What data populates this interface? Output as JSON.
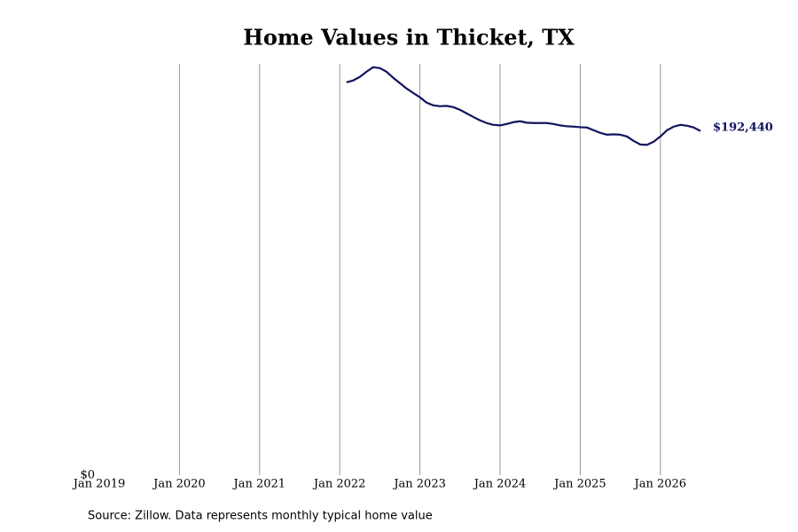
{
  "chart_data": {
    "type": "line",
    "title": "Home Values in Thicket, TX",
    "source": "Source: Zillow. Data represents monthly typical home value",
    "x": [
      "2022-02",
      "2022-03",
      "2022-04",
      "2022-05",
      "2022-06",
      "2022-07",
      "2022-08",
      "2022-09",
      "2022-10",
      "2022-11",
      "2022-12",
      "2023-01",
      "2023-02",
      "2023-03",
      "2023-04",
      "2023-05",
      "2023-06",
      "2023-07",
      "2023-08",
      "2023-09",
      "2023-10",
      "2023-11",
      "2023-12",
      "2024-01",
      "2024-02",
      "2024-03",
      "2024-04",
      "2024-05",
      "2024-06",
      "2024-07",
      "2024-08",
      "2024-09",
      "2024-10",
      "2024-11",
      "2024-12",
      "2025-01",
      "2025-02",
      "2025-03",
      "2025-04",
      "2025-05",
      "2025-06",
      "2025-07",
      "2025-08",
      "2025-09",
      "2025-10",
      "2025-11",
      "2025-12",
      "2026-01",
      "2026-02",
      "2026-03",
      "2026-04",
      "2026-05",
      "2026-06",
      "2026-07"
    ],
    "series": [
      {
        "name": "Thicket, TX",
        "color": "#10135e",
        "values": [
          219700,
          220700,
          222700,
          225600,
          228100,
          227600,
          225600,
          222200,
          219200,
          216200,
          213700,
          211300,
          208300,
          206800,
          206300,
          206500,
          205800,
          204300,
          202300,
          200300,
          198400,
          196900,
          195900,
          195600,
          196400,
          197400,
          197900,
          197100,
          196900,
          196900,
          196900,
          196400,
          195600,
          195100,
          194900,
          194600,
          194400,
          192900,
          191400,
          190400,
          190600,
          190400,
          189400,
          186900,
          184900,
          184700,
          186500,
          189400,
          192900,
          194900,
          195900,
          195400,
          194400,
          192440
        ],
        "value_labels": [
          null,
          null,
          null,
          null,
          null,
          null,
          null,
          null,
          null,
          null,
          null,
          null,
          null,
          null,
          null,
          null,
          null,
          null,
          null,
          null,
          null,
          null,
          null,
          null,
          null,
          null,
          null,
          null,
          null,
          null,
          null,
          null,
          null,
          null,
          null,
          null,
          null,
          null,
          null,
          null,
          null,
          null,
          null,
          null,
          null,
          null,
          null,
          null,
          null,
          null,
          null,
          null,
          null,
          "$192,440"
        ]
      }
    ],
    "xlim": [
      "2019-01",
      "2026-07"
    ],
    "xticks": [
      {
        "value": "2019-01",
        "label": "Jan 2019"
      },
      {
        "value": "2020-01",
        "label": "Jan 2020"
      },
      {
        "value": "2021-01",
        "label": "Jan 2021"
      },
      {
        "value": "2022-01",
        "label": "Jan 2022"
      },
      {
        "value": "2023-01",
        "label": "Jan 2023"
      },
      {
        "value": "2024-01",
        "label": "Jan 2024"
      },
      {
        "value": "2025-01",
        "label": "Jan 2025"
      },
      {
        "value": "2026-01",
        "label": "Jan 2026"
      }
    ],
    "ylim": [
      0,
      230000
    ],
    "yticks": [
      {
        "value": 0,
        "label": "$0"
      }
    ],
    "grid": "x"
  }
}
